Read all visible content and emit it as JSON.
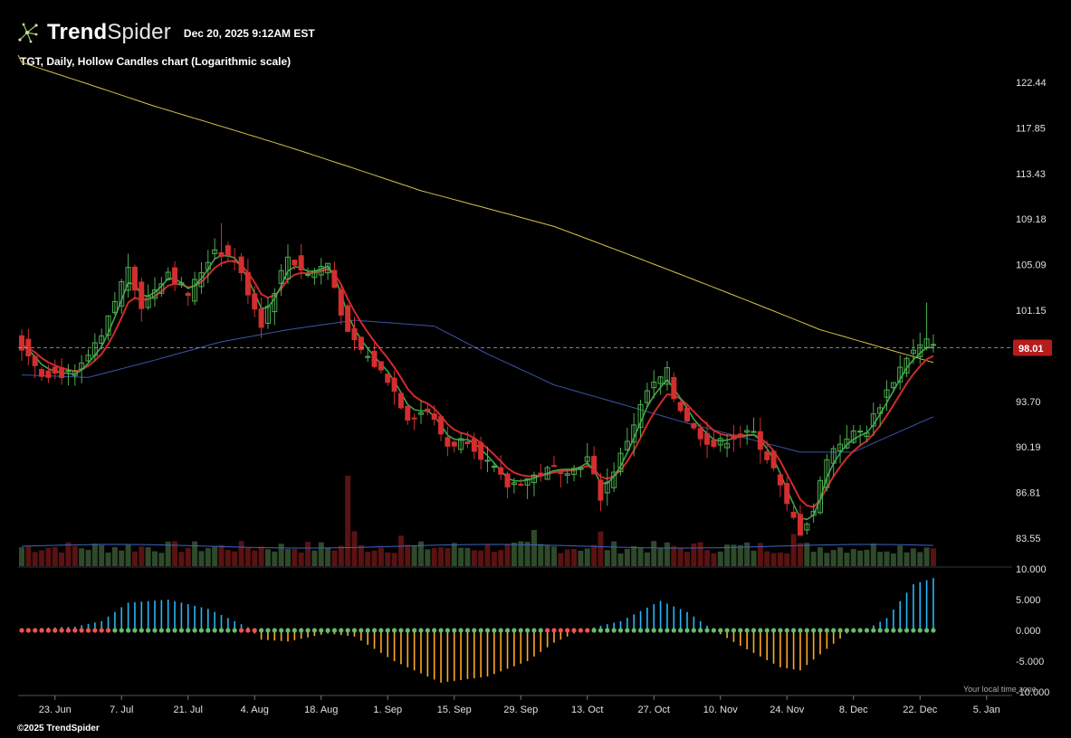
{
  "header": {
    "logo_bold": "Trend",
    "logo_light": "Spider",
    "timestamp": "Dec 20, 2025 9:12AM EST"
  },
  "chart_title": "TGT, Daily, Hollow Candles chart (Logarithmic scale)",
  "copyright": "©2025 TrendSpider",
  "local_time_note": "Your local time zone",
  "colors": {
    "up": "#4caf50",
    "down": "#d32f2f",
    "sma_slow": "#d6c04a",
    "sma_mid": "#3a55a8",
    "ema_fast": "#3fa34d",
    "ema_slow": "#d12a2a",
    "osc_pos": "#29b6f6",
    "osc_neg": "#ffa726",
    "price_tag": "#b71c1c"
  },
  "chart_data": {
    "type": "candlestick",
    "scale": "log",
    "symbol": "TGT",
    "interval": "Daily",
    "last_price": 98.01,
    "price_axis_ticks": [
      122.44,
      117.85,
      113.43,
      109.18,
      105.09,
      101.15,
      97.36,
      93.7,
      90.19,
      86.81,
      83.55
    ],
    "price_axis_labels": [
      "122.44",
      "117.85",
      "113.43",
      "109.18",
      "105.09",
      "101.15",
      "93.70",
      "90.19",
      "86.81",
      "83.55"
    ],
    "last_price_label": "98.01",
    "date_axis": {
      "labels": [
        "23. Jun",
        "7. Jul",
        "21. Jul",
        "4. Aug",
        "18. Aug",
        "1. Sep",
        "15. Sep",
        "29. Sep",
        "13. Oct",
        "27. Oct",
        "10. Nov",
        "24. Nov",
        "8. Dec",
        "22. Dec",
        "5. Jan"
      ],
      "bar_index": [
        5,
        15,
        25,
        35,
        45,
        55,
        65,
        75,
        85,
        95,
        105,
        115,
        125,
        135,
        145
      ]
    },
    "close_keypoints": [
      {
        "bar": 0,
        "close": 98.2
      },
      {
        "bar": 3,
        "close": 96.0
      },
      {
        "bar": 8,
        "close": 95.8
      },
      {
        "bar": 12,
        "close": 98.8
      },
      {
        "bar": 16,
        "close": 105.0
      },
      {
        "bar": 18,
        "close": 101.5
      },
      {
        "bar": 22,
        "close": 104.5
      },
      {
        "bar": 25,
        "close": 102.5
      },
      {
        "bar": 29,
        "close": 106.5
      },
      {
        "bar": 32,
        "close": 105.5
      },
      {
        "bar": 36,
        "close": 100.0
      },
      {
        "bar": 40,
        "close": 105.8
      },
      {
        "bar": 43,
        "close": 104.2
      },
      {
        "bar": 46,
        "close": 105.2
      },
      {
        "bar": 49,
        "close": 99.0
      },
      {
        "bar": 52,
        "close": 97.2
      },
      {
        "bar": 55,
        "close": 95.5
      },
      {
        "bar": 58,
        "close": 92.5
      },
      {
        "bar": 61,
        "close": 93.0
      },
      {
        "bar": 64,
        "close": 90.3
      },
      {
        "bar": 67,
        "close": 90.8
      },
      {
        "bar": 70,
        "close": 89.0
      },
      {
        "bar": 73,
        "close": 87.3
      },
      {
        "bar": 76,
        "close": 87.8
      },
      {
        "bar": 80,
        "close": 88.6
      },
      {
        "bar": 83,
        "close": 88.5
      },
      {
        "bar": 85,
        "close": 89.3
      },
      {
        "bar": 87,
        "close": 86.5
      },
      {
        "bar": 90,
        "close": 89.5
      },
      {
        "bar": 94,
        "close": 94.5
      },
      {
        "bar": 97,
        "close": 96.0
      },
      {
        "bar": 98,
        "close": 94.0
      },
      {
        "bar": 101,
        "close": 91.5
      },
      {
        "bar": 104,
        "close": 90.3
      },
      {
        "bar": 107,
        "close": 91.0
      },
      {
        "bar": 110,
        "close": 91.2
      },
      {
        "bar": 113,
        "close": 88.5
      },
      {
        "bar": 115,
        "close": 85.8
      },
      {
        "bar": 117,
        "close": 84.0
      },
      {
        "bar": 119,
        "close": 85.5
      },
      {
        "bar": 121,
        "close": 89.5
      },
      {
        "bar": 124,
        "close": 91.0
      },
      {
        "bar": 127,
        "close": 91.5
      },
      {
        "bar": 130,
        "close": 94.5
      },
      {
        "bar": 133,
        "close": 97.3
      },
      {
        "bar": 136,
        "close": 98.5
      },
      {
        "bar": 137,
        "close": 98.01
      }
    ],
    "sma200": [
      {
        "bar": 0,
        "value": 124.5
      },
      {
        "bar": 20,
        "value": 120.0
      },
      {
        "bar": 40,
        "value": 116.0
      },
      {
        "bar": 60,
        "value": 111.8
      },
      {
        "bar": 80,
        "value": 108.5
      },
      {
        "bar": 100,
        "value": 104.0
      },
      {
        "bar": 120,
        "value": 99.5
      },
      {
        "bar": 137,
        "value": 96.8
      }
    ],
    "sma50": [
      {
        "bar": 0,
        "value": 95.8
      },
      {
        "bar": 10,
        "value": 95.6
      },
      {
        "bar": 20,
        "value": 97.0
      },
      {
        "bar": 30,
        "value": 98.5
      },
      {
        "bar": 40,
        "value": 99.5
      },
      {
        "bar": 50,
        "value": 100.3
      },
      {
        "bar": 62,
        "value": 99.8
      },
      {
        "bar": 70,
        "value": 97.5
      },
      {
        "bar": 80,
        "value": 95.0
      },
      {
        "bar": 90,
        "value": 93.5
      },
      {
        "bar": 100,
        "value": 92.0
      },
      {
        "bar": 110,
        "value": 90.7
      },
      {
        "bar": 117,
        "value": 89.8
      },
      {
        "bar": 125,
        "value": 89.8
      },
      {
        "bar": 137,
        "value": 92.5
      }
    ],
    "oscillator": {
      "axis_labels": [
        "10.000",
        "5.000",
        "0.000",
        "-5.000",
        "-10.000"
      ],
      "axis_values": [
        10,
        5,
        0,
        -5,
        -10
      ],
      "keypoints": [
        {
          "bar": 0,
          "value": 0.3
        },
        {
          "bar": 8,
          "value": 0.6
        },
        {
          "bar": 12,
          "value": 1.5
        },
        {
          "bar": 16,
          "value": 4.5
        },
        {
          "bar": 22,
          "value": 5.0
        },
        {
          "bar": 28,
          "value": 3.5
        },
        {
          "bar": 34,
          "value": 0.5
        },
        {
          "bar": 36,
          "value": -1.5
        },
        {
          "bar": 40,
          "value": -1.8
        },
        {
          "bar": 46,
          "value": -0.5
        },
        {
          "bar": 50,
          "value": -1.0
        },
        {
          "bar": 56,
          "value": -5.0
        },
        {
          "bar": 63,
          "value": -8.5
        },
        {
          "bar": 70,
          "value": -7.5
        },
        {
          "bar": 76,
          "value": -5.0
        },
        {
          "bar": 80,
          "value": -2.0
        },
        {
          "bar": 84,
          "value": 0.0
        },
        {
          "bar": 90,
          "value": 1.5
        },
        {
          "bar": 96,
          "value": 4.8
        },
        {
          "bar": 100,
          "value": 3.0
        },
        {
          "bar": 104,
          "value": 0.0
        },
        {
          "bar": 108,
          "value": -2.5
        },
        {
          "bar": 114,
          "value": -6.0
        },
        {
          "bar": 117,
          "value": -6.5
        },
        {
          "bar": 121,
          "value": -3.0
        },
        {
          "bar": 124,
          "value": -0.5
        },
        {
          "bar": 127,
          "value": 0.2
        },
        {
          "bar": 130,
          "value": 2.0
        },
        {
          "bar": 134,
          "value": 7.5
        },
        {
          "bar": 137,
          "value": 8.5
        }
      ]
    }
  }
}
